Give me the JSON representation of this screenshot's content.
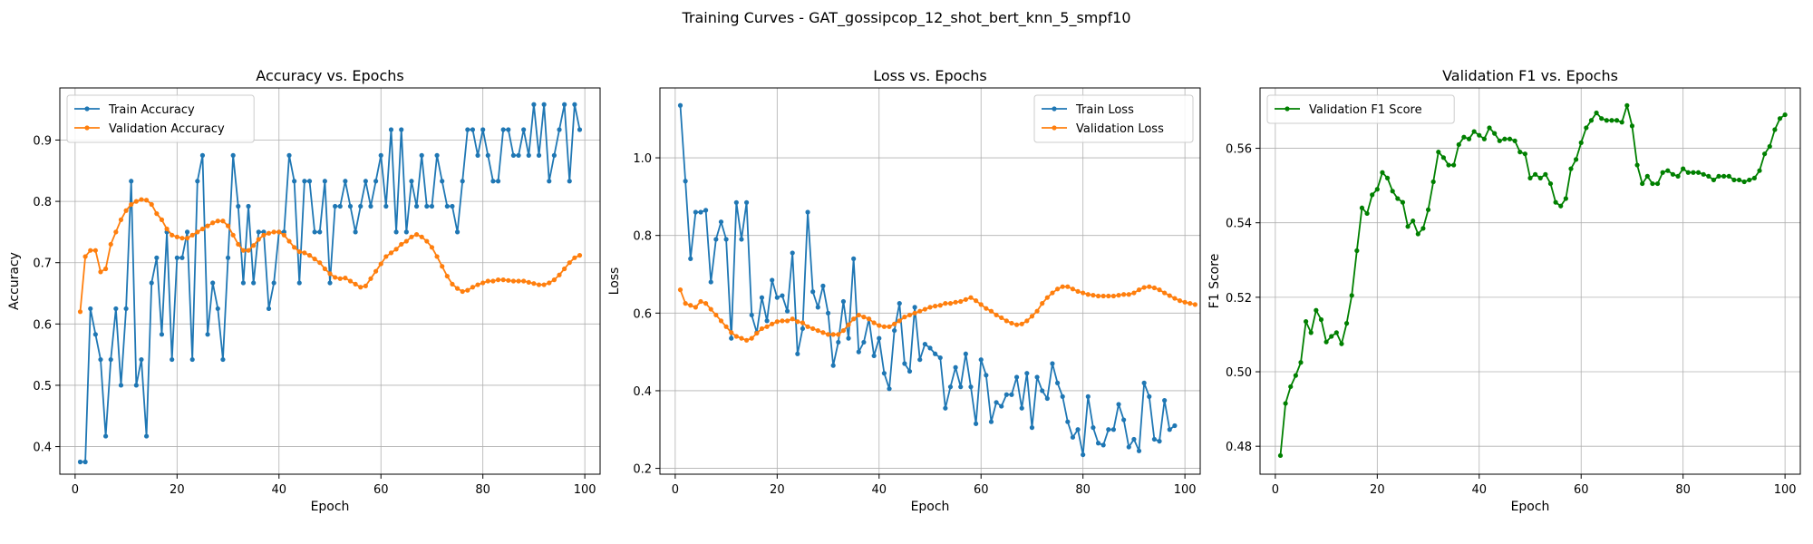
{
  "suptitle": "Training Curves - GAT_gossipcop_12_shot_bert_knn_5_smpf10",
  "chart_data": [
    {
      "type": "line",
      "title": "Accuracy vs. Epochs",
      "xlabel": "Epoch",
      "ylabel": "Accuracy",
      "xlim": [
        -3,
        103
      ],
      "ylim": [
        0.355,
        0.985
      ],
      "xticks": [
        0,
        20,
        40,
        60,
        80,
        100
      ],
      "yticks": [
        0.4,
        0.5,
        0.6,
        0.7,
        0.8,
        0.9
      ],
      "ytick_labels": [
        "0.4",
        "0.5",
        "0.6",
        "0.7",
        "0.8",
        "0.9"
      ],
      "grid": true,
      "legend": "upper-left",
      "x_start": 1,
      "series": [
        {
          "name": "Train Accuracy",
          "color": "#1f77b4",
          "values": [
            0.375,
            0.375,
            0.625,
            0.583,
            0.542,
            0.417,
            0.542,
            0.625,
            0.5,
            0.625,
            0.833,
            0.5,
            0.542,
            0.417,
            0.667,
            0.708,
            0.583,
            0.75,
            0.542,
            0.708,
            0.708,
            0.75,
            0.542,
            0.833,
            0.875,
            0.583,
            0.667,
            0.625,
            0.542,
            0.708,
            0.875,
            0.792,
            0.667,
            0.792,
            0.667,
            0.75,
            0.75,
            0.625,
            0.667,
            0.75,
            0.75,
            0.875,
            0.833,
            0.667,
            0.833,
            0.833,
            0.75,
            0.75,
            0.833,
            0.667,
            0.792,
            0.792,
            0.833,
            0.792,
            0.75,
            0.792,
            0.833,
            0.792,
            0.833,
            0.875,
            0.792,
            0.917,
            0.75,
            0.917,
            0.75,
            0.833,
            0.792,
            0.875,
            0.792,
            0.792,
            0.875,
            0.833,
            0.792,
            0.792,
            0.75,
            0.833,
            0.917,
            0.917,
            0.875,
            0.917,
            0.875,
            0.833,
            0.833,
            0.917,
            0.917,
            0.875,
            0.875,
            0.917,
            0.875,
            0.958,
            0.875,
            0.958,
            0.833,
            0.875,
            0.917,
            0.958,
            0.833,
            0.958,
            0.917
          ]
        },
        {
          "name": "Validation Accuracy",
          "color": "#ff7f0e",
          "values": [
            0.62,
            0.71,
            0.72,
            0.72,
            0.685,
            0.69,
            0.73,
            0.75,
            0.77,
            0.785,
            0.795,
            0.8,
            0.803,
            0.802,
            0.795,
            0.78,
            0.77,
            0.755,
            0.745,
            0.742,
            0.74,
            0.74,
            0.745,
            0.75,
            0.755,
            0.76,
            0.765,
            0.768,
            0.768,
            0.76,
            0.745,
            0.73,
            0.72,
            0.72,
            0.728,
            0.738,
            0.745,
            0.748,
            0.75,
            0.75,
            0.745,
            0.735,
            0.725,
            0.718,
            0.716,
            0.712,
            0.706,
            0.7,
            0.69,
            0.682,
            0.676,
            0.674,
            0.675,
            0.67,
            0.665,
            0.66,
            0.662,
            0.674,
            0.686,
            0.698,
            0.71,
            0.716,
            0.722,
            0.73,
            0.735,
            0.742,
            0.746,
            0.742,
            0.735,
            0.725,
            0.71,
            0.694,
            0.678,
            0.665,
            0.658,
            0.653,
            0.655,
            0.66,
            0.664,
            0.667,
            0.67,
            0.67,
            0.672,
            0.672,
            0.671,
            0.67,
            0.67,
            0.67,
            0.668,
            0.666,
            0.664,
            0.664,
            0.667,
            0.672,
            0.68,
            0.69,
            0.7,
            0.708,
            0.712
          ]
        }
      ]
    },
    {
      "type": "line",
      "title": "Loss vs. Epochs",
      "xlabel": "Epoch",
      "ylabel": "Loss",
      "xlim": [
        -3,
        103
      ],
      "ylim": [
        0.185,
        1.18
      ],
      "xticks": [
        0,
        20,
        40,
        60,
        80,
        100
      ],
      "yticks": [
        0.2,
        0.4,
        0.6,
        0.8,
        1.0
      ],
      "ytick_labels": [
        "0.2",
        "0.4",
        "0.6",
        "0.8",
        "1.0"
      ],
      "grid": true,
      "legend": "upper-right",
      "x_start": 1,
      "series": [
        {
          "name": "Train Loss",
          "color": "#1f77b4",
          "values": [
            1.135,
            0.94,
            0.74,
            0.86,
            0.86,
            0.865,
            0.68,
            0.79,
            0.835,
            0.79,
            0.535,
            0.885,
            0.79,
            0.885,
            0.595,
            0.55,
            0.64,
            0.58,
            0.685,
            0.64,
            0.645,
            0.605,
            0.755,
            0.495,
            0.56,
            0.86,
            0.655,
            0.615,
            0.67,
            0.6,
            0.465,
            0.525,
            0.63,
            0.535,
            0.74,
            0.5,
            0.525,
            0.585,
            0.49,
            0.535,
            0.445,
            0.405,
            0.555,
            0.625,
            0.47,
            0.45,
            0.615,
            0.48,
            0.52,
            0.51,
            0.495,
            0.485,
            0.355,
            0.41,
            0.46,
            0.41,
            0.495,
            0.41,
            0.315,
            0.48,
            0.44,
            0.32,
            0.37,
            0.36,
            0.39,
            0.39,
            0.435,
            0.355,
            0.445,
            0.305,
            0.435,
            0.4,
            0.38,
            0.47,
            0.42,
            0.385,
            0.32,
            0.28,
            0.3,
            0.235,
            0.385,
            0.305,
            0.265,
            0.26,
            0.3,
            0.3,
            0.365,
            0.325,
            0.255,
            0.275,
            0.245,
            0.42,
            0.385,
            0.275,
            0.27,
            0.375,
            0.3,
            0.31
          ]
        },
        {
          "name": "Validation Loss",
          "color": "#ff7f0e",
          "values": [
            0.66,
            0.625,
            0.62,
            0.615,
            0.63,
            0.625,
            0.61,
            0.595,
            0.58,
            0.565,
            0.55,
            0.54,
            0.535,
            0.53,
            0.535,
            0.548,
            0.56,
            0.565,
            0.572,
            0.578,
            0.58,
            0.58,
            0.585,
            0.578,
            0.575,
            0.565,
            0.56,
            0.555,
            0.55,
            0.545,
            0.545,
            0.545,
            0.555,
            0.57,
            0.585,
            0.595,
            0.59,
            0.585,
            0.575,
            0.568,
            0.565,
            0.565,
            0.572,
            0.58,
            0.59,
            0.595,
            0.6,
            0.605,
            0.61,
            0.615,
            0.618,
            0.62,
            0.625,
            0.625,
            0.628,
            0.63,
            0.635,
            0.64,
            0.632,
            0.622,
            0.612,
            0.605,
            0.595,
            0.588,
            0.58,
            0.574,
            0.57,
            0.572,
            0.58,
            0.592,
            0.605,
            0.625,
            0.64,
            0.652,
            0.662,
            0.668,
            0.668,
            0.662,
            0.656,
            0.652,
            0.648,
            0.646,
            0.644,
            0.644,
            0.644,
            0.644,
            0.646,
            0.648,
            0.648,
            0.652,
            0.66,
            0.666,
            0.668,
            0.665,
            0.66,
            0.652,
            0.645,
            0.638,
            0.632,
            0.628,
            0.625,
            0.622
          ]
        }
      ]
    },
    {
      "type": "line",
      "title": "Validation F1 vs. Epochs",
      "xlabel": "Epoch",
      "ylabel": "F1 Score",
      "xlim": [
        -3,
        103
      ],
      "ylim": [
        0.4725,
        0.5762
      ],
      "xticks": [
        0,
        20,
        40,
        60,
        80,
        100
      ],
      "yticks": [
        0.48,
        0.5,
        0.52,
        0.54,
        0.56
      ],
      "ytick_labels": [
        "0.48",
        "0.50",
        "0.52",
        "0.54",
        "0.56"
      ],
      "grid": true,
      "legend": "upper-left",
      "x_start": 1,
      "series": [
        {
          "name": "Validation F1 Score",
          "color": "#008000",
          "values": [
            0.4775,
            0.4915,
            0.496,
            0.499,
            0.5025,
            0.5135,
            0.5105,
            0.5165,
            0.514,
            0.508,
            0.5095,
            0.5105,
            0.5075,
            0.513,
            0.5205,
            0.5325,
            0.544,
            0.5425,
            0.5475,
            0.549,
            0.5535,
            0.552,
            0.5485,
            0.5465,
            0.5455,
            0.539,
            0.5405,
            0.537,
            0.5385,
            0.5435,
            0.551,
            0.559,
            0.5575,
            0.5555,
            0.5555,
            0.561,
            0.563,
            0.5625,
            0.5645,
            0.5635,
            0.5625,
            0.5655,
            0.564,
            0.562,
            0.5625,
            0.5625,
            0.562,
            0.559,
            0.5585,
            0.552,
            0.553,
            0.552,
            0.553,
            0.5505,
            0.5455,
            0.5445,
            0.5465,
            0.5545,
            0.557,
            0.5615,
            0.5655,
            0.5675,
            0.5695,
            0.568,
            0.5675,
            0.5675,
            0.5675,
            0.567,
            0.5715,
            0.566,
            0.5555,
            0.5505,
            0.5525,
            0.5505,
            0.5505,
            0.5535,
            0.554,
            0.553,
            0.5525,
            0.5545,
            0.5535,
            0.5535,
            0.5535,
            0.553,
            0.5525,
            0.5515,
            0.5525,
            0.5525,
            0.5525,
            0.5515,
            0.5515,
            0.551,
            0.5515,
            0.552,
            0.554,
            0.5585,
            0.5605,
            0.565,
            0.568,
            0.569
          ]
        }
      ]
    }
  ]
}
